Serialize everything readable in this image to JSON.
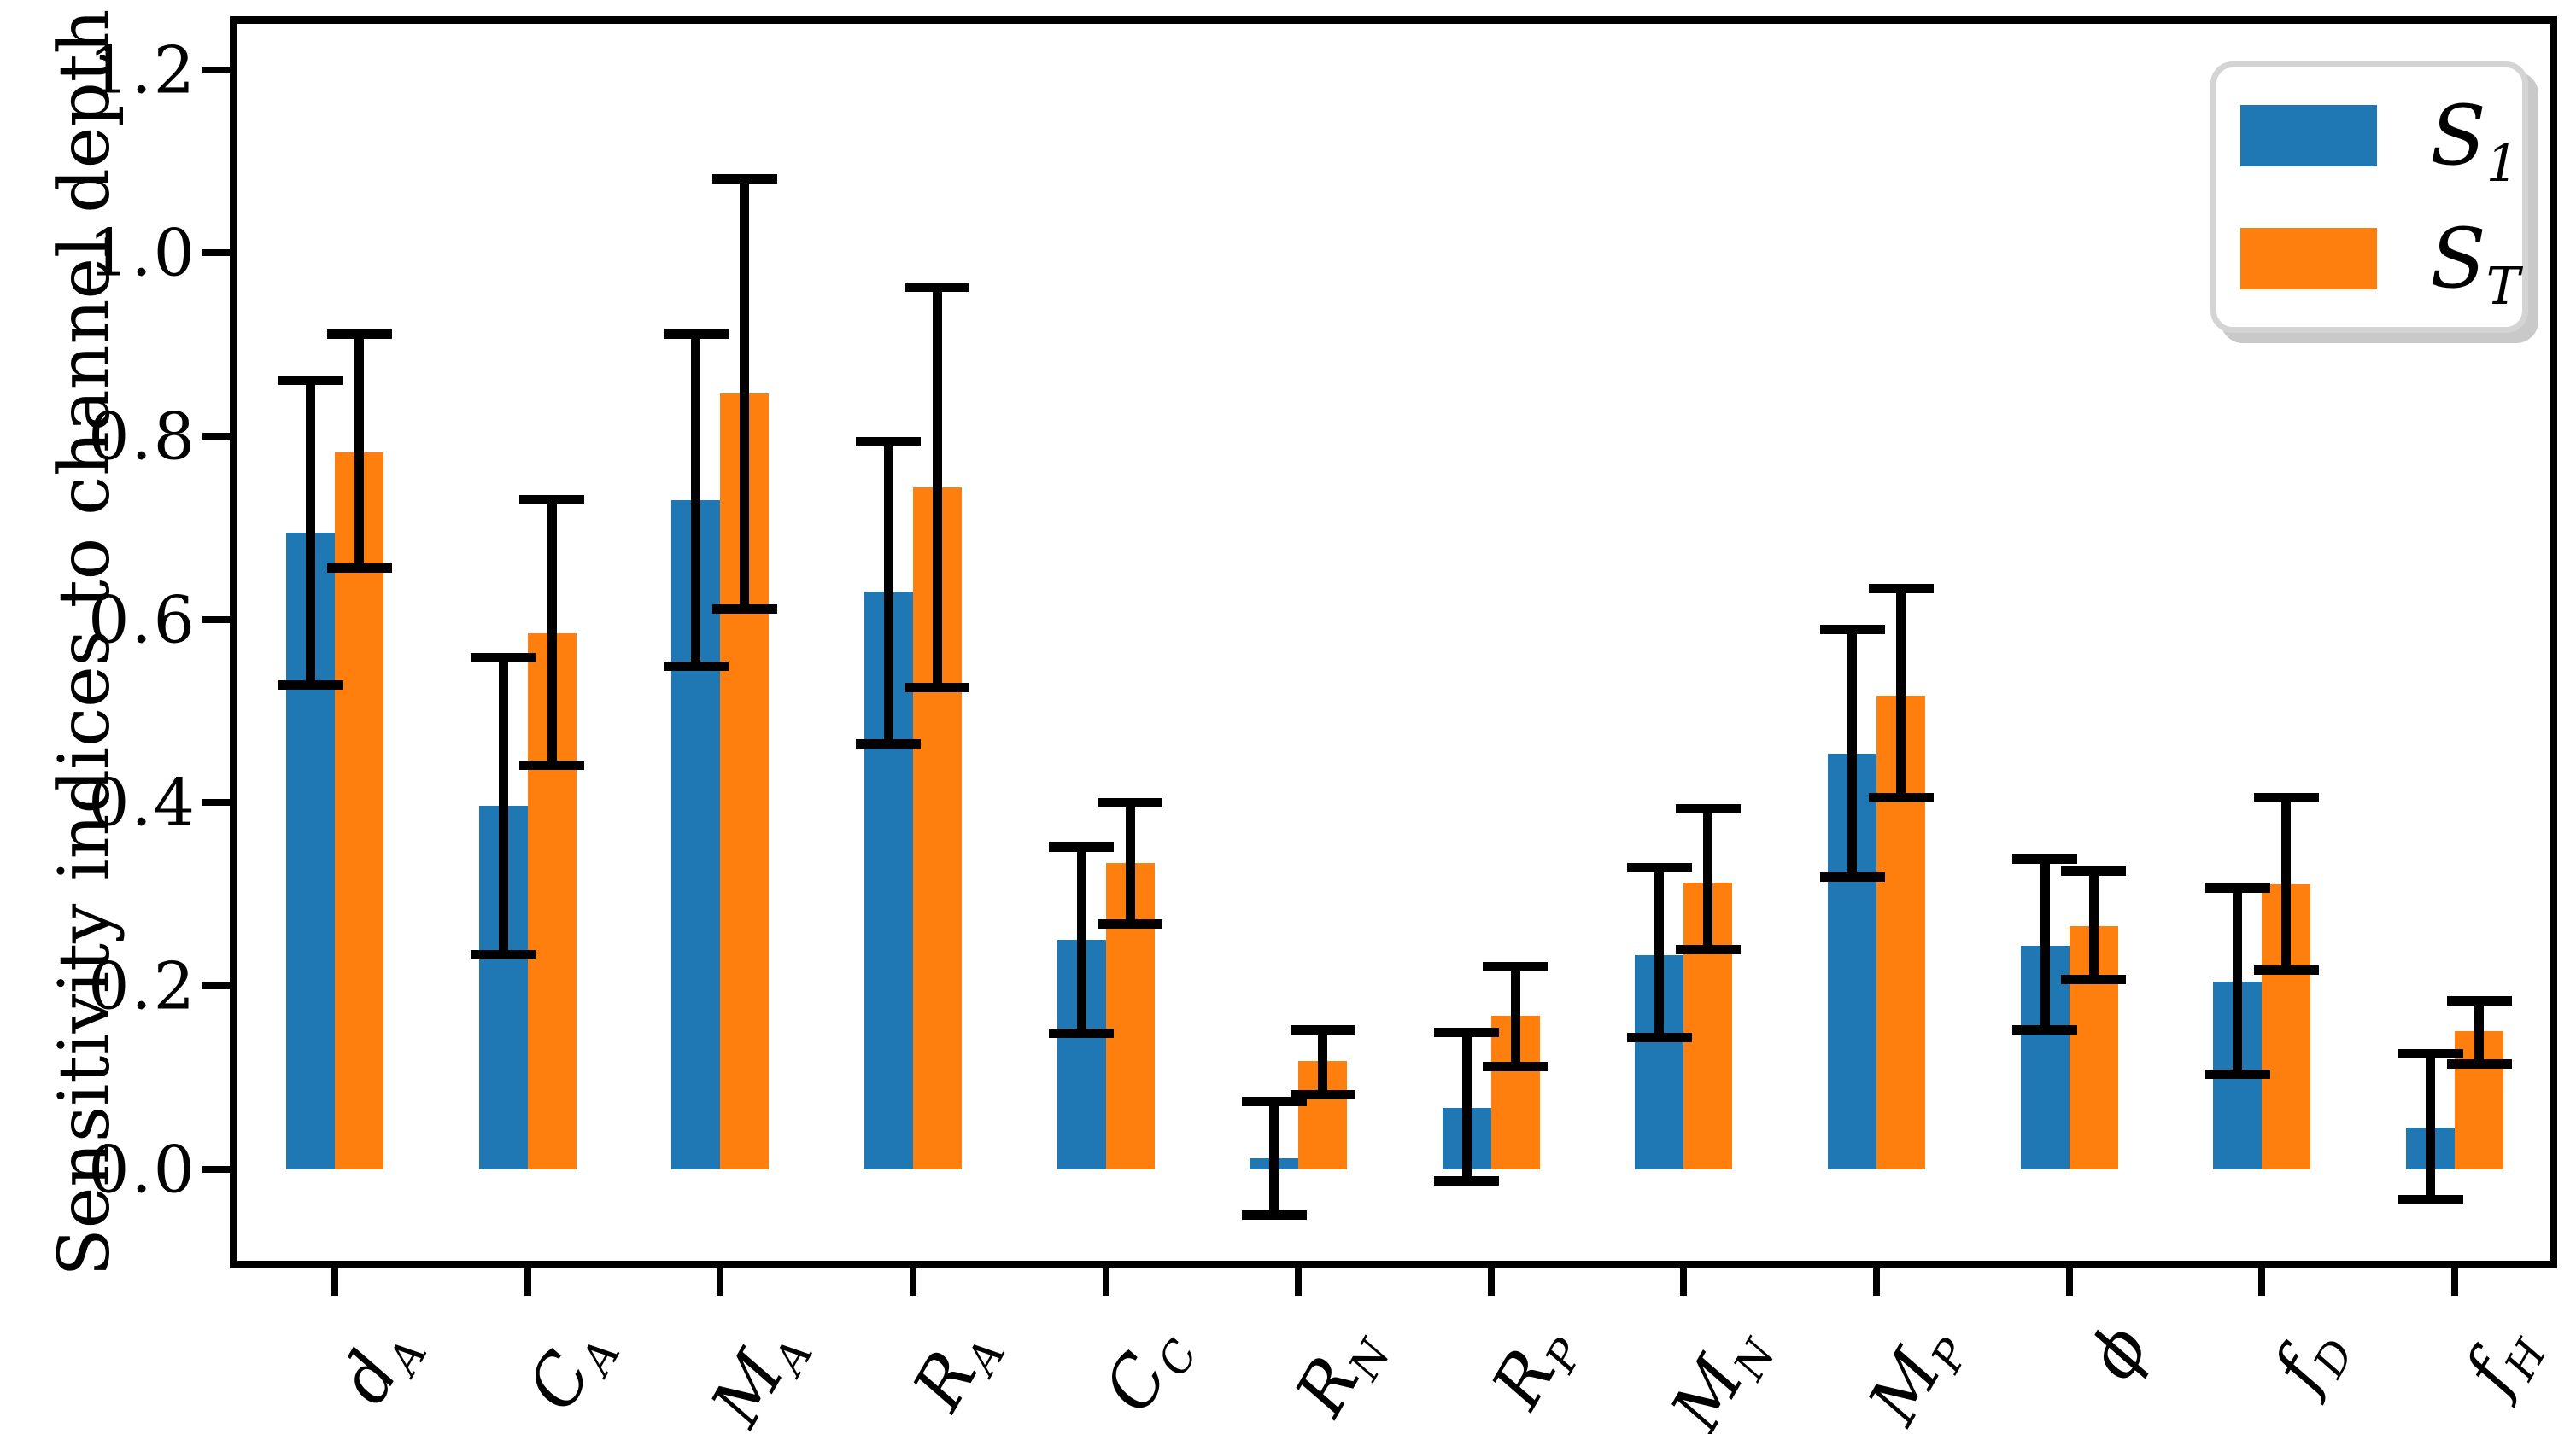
{
  "chart_data": {
    "type": "bar",
    "title": "",
    "xlabel": "",
    "ylabel": "Sensitivity indices to channel depth",
    "ylim": [
      -0.1,
      1.25
    ],
    "yticks": [
      0.0,
      0.2,
      0.4,
      0.6,
      0.8,
      1.0,
      1.2
    ],
    "ytick_labels": [
      "0.0",
      "0.2",
      "0.4",
      "0.6",
      "0.8",
      "1.0",
      "1.2"
    ],
    "grid": false,
    "background_color": "#ffffff",
    "error_bar_color": "#000000",
    "categories": [
      "d_A",
      "C_A",
      "M_A",
      "R_A",
      "C_C",
      "R_N",
      "R_P",
      "M_N",
      "M_P",
      "phi",
      "f_D",
      "f_H"
    ],
    "categories_rich": [
      {
        "main": "d",
        "sub": "A"
      },
      {
        "main": "C",
        "sub": "A"
      },
      {
        "main": "M",
        "sub": "A"
      },
      {
        "main": "R",
        "sub": "A"
      },
      {
        "main": "C",
        "sub": "C"
      },
      {
        "main": "R",
        "sub": "N"
      },
      {
        "main": "R",
        "sub": "P"
      },
      {
        "main": "M",
        "sub": "N"
      },
      {
        "main": "M",
        "sub": "P"
      },
      {
        "main": "ϕ",
        "sub": ""
      },
      {
        "main": "f",
        "sub": "D"
      },
      {
        "main": "f",
        "sub": "H"
      }
    ],
    "series": [
      {
        "name": "S_1",
        "color": "#1f77b4",
        "values": [
          0.695,
          0.397,
          0.73,
          0.63,
          0.25,
          0.012,
          0.067,
          0.234,
          0.453,
          0.244,
          0.205,
          0.045
        ],
        "err_low": [
          0.528,
          0.234,
          0.549,
          0.464,
          0.148,
          -0.05,
          -0.013,
          0.144,
          0.319,
          0.152,
          0.104,
          -0.033
        ],
        "err_high": [
          0.861,
          0.558,
          0.911,
          0.794,
          0.351,
          0.074,
          0.149,
          0.329,
          0.589,
          0.338,
          0.307,
          0.126
        ]
      },
      {
        "name": "S_T",
        "color": "#ff7f0e",
        "values": [
          0.782,
          0.585,
          0.847,
          0.744,
          0.334,
          0.118,
          0.167,
          0.313,
          0.517,
          0.265,
          0.311,
          0.151
        ],
        "err_low": [
          0.656,
          0.441,
          0.611,
          0.526,
          0.268,
          0.081,
          0.112,
          0.24,
          0.405,
          0.207,
          0.217,
          0.115
        ],
        "err_high": [
          0.911,
          0.731,
          1.081,
          0.963,
          0.4,
          0.152,
          0.221,
          0.393,
          0.634,
          0.325,
          0.405,
          0.184
        ]
      }
    ],
    "legend": {
      "position": "upper right",
      "entries": [
        {
          "label_main": "S",
          "label_sub": "1",
          "color": "#1f77b4"
        },
        {
          "label_main": "S",
          "label_sub": "T",
          "color": "#ff7f0e"
        }
      ]
    }
  }
}
